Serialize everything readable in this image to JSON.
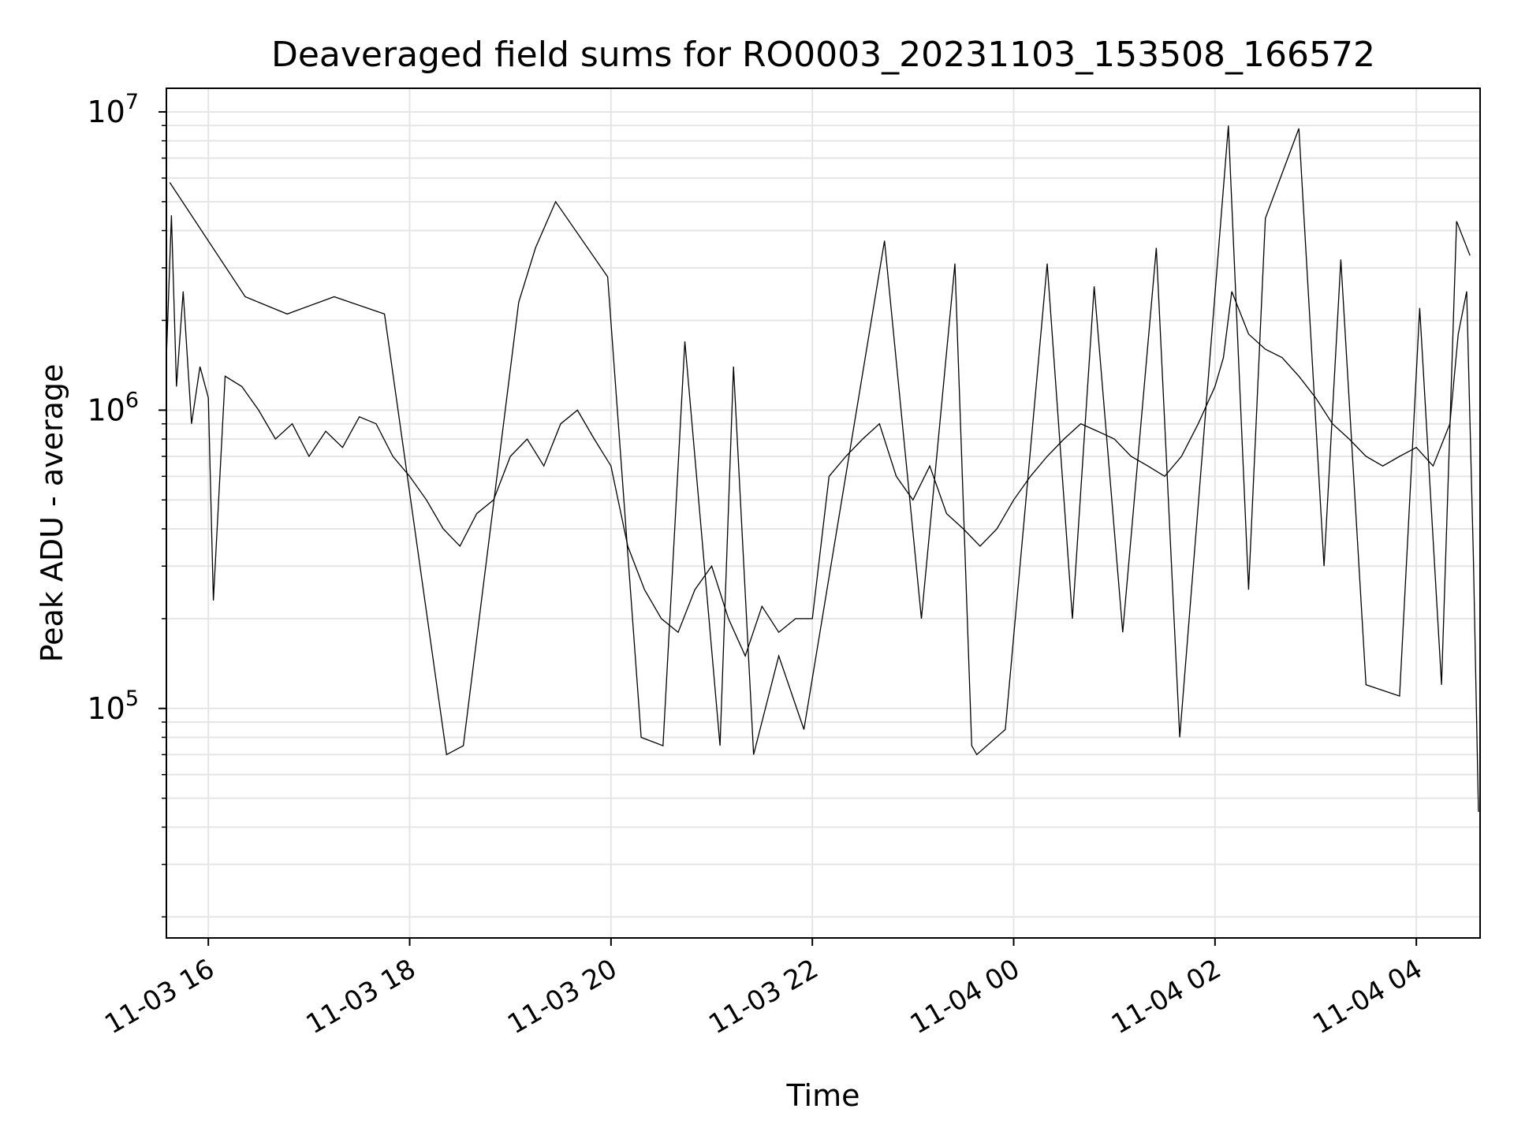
{
  "chart_data": {
    "type": "line",
    "title": "Deaveraged field sums for RO0003_20231103_153508_166572",
    "xlabel": "Time",
    "ylabel": "Peak ADU - average",
    "yscale": "log",
    "ylim": [
      17000,
      12000000
    ],
    "xlim": [
      "2023-11-03 15:35",
      "2023-11-04 04:38"
    ],
    "grid": true,
    "line_color": "#000000",
    "grid_color": "#e5e5e5",
    "x_ticks": [
      {
        "value": "2023-11-03 16:00",
        "label": "11-03 16"
      },
      {
        "value": "2023-11-03 18:00",
        "label": "11-03 18"
      },
      {
        "value": "2023-11-03 20:00",
        "label": "11-03 20"
      },
      {
        "value": "2023-11-03 22:00",
        "label": "11-03 22"
      },
      {
        "value": "2023-11-04 00:00",
        "label": "11-04 00"
      },
      {
        "value": "2023-11-04 02:00",
        "label": "11-04 02"
      },
      {
        "value": "2023-11-04 04:00",
        "label": "11-04 04"
      }
    ],
    "y_ticks": [
      {
        "value": 100000,
        "base": "10",
        "exp": "5"
      },
      {
        "value": 1000000,
        "base": "10",
        "exp": "6"
      },
      {
        "value": 10000000,
        "base": "10",
        "exp": "7"
      }
    ],
    "series": [
      {
        "x": [
          "2023-11-03 15:35",
          "2023-11-03 15:38",
          "2023-11-03 15:41",
          "2023-11-03 15:45",
          "2023-11-03 15:50",
          "2023-11-03 15:55",
          "2023-11-03 16:00",
          "2023-11-03 16:03",
          "2023-11-03 16:10",
          "2023-11-03 16:20",
          "2023-11-03 16:30",
          "2023-11-03 16:40",
          "2023-11-03 16:50",
          "2023-11-03 17:00",
          "2023-11-03 17:10",
          "2023-11-03 17:20",
          "2023-11-03 17:30",
          "2023-11-03 17:40",
          "2023-11-03 17:50",
          "2023-11-03 18:00",
          "2023-11-03 18:10",
          "2023-11-03 18:20",
          "2023-11-03 18:30",
          "2023-11-03 18:40",
          "2023-11-03 18:50",
          "2023-11-03 19:00",
          "2023-11-03 19:10",
          "2023-11-03 19:20",
          "2023-11-03 19:30",
          "2023-11-03 19:40",
          "2023-11-03 19:50",
          "2023-11-03 20:00",
          "2023-11-03 20:10",
          "2023-11-03 20:20",
          "2023-11-03 20:30",
          "2023-11-03 20:40",
          "2023-11-03 20:50",
          "2023-11-03 21:00",
          "2023-11-03 21:10",
          "2023-11-03 21:20",
          "2023-11-03 21:30",
          "2023-11-03 21:40",
          "2023-11-03 21:50",
          "2023-11-03 22:00",
          "2023-11-03 22:10",
          "2023-11-03 22:20",
          "2023-11-03 22:30",
          "2023-11-03 22:40",
          "2023-11-03 22:50",
          "2023-11-03 23:00",
          "2023-11-03 23:10",
          "2023-11-03 23:20",
          "2023-11-03 23:30",
          "2023-11-03 23:40",
          "2023-11-03 23:50",
          "2023-11-04 00:00",
          "2023-11-04 00:10",
          "2023-11-04 00:20",
          "2023-11-04 00:30",
          "2023-11-04 00:40",
          "2023-11-04 00:50",
          "2023-11-04 01:00",
          "2023-11-04 01:10",
          "2023-11-04 01:20",
          "2023-11-04 01:30",
          "2023-11-04 01:40",
          "2023-11-04 01:50",
          "2023-11-04 02:00",
          "2023-11-04 02:05",
          "2023-11-04 02:10",
          "2023-11-04 02:20",
          "2023-11-04 02:30",
          "2023-11-04 02:40",
          "2023-11-04 02:50",
          "2023-11-04 03:00",
          "2023-11-04 03:10",
          "2023-11-04 03:20",
          "2023-11-04 03:30",
          "2023-11-04 03:40",
          "2023-11-04 03:50",
          "2023-11-04 04:00",
          "2023-11-04 04:10",
          "2023-11-04 04:20",
          "2023-11-04 04:25",
          "2023-11-04 04:30",
          "2023-11-04 04:34",
          "2023-11-04 04:37"
        ],
        "y": [
          1500000,
          4500000,
          1200000,
          2500000,
          900000,
          1400000,
          1100000,
          230000,
          1300000,
          1200000,
          1000000,
          800000,
          900000,
          700000,
          850000,
          750000,
          950000,
          900000,
          700000,
          600000,
          500000,
          400000,
          350000,
          450000,
          500000,
          700000,
          800000,
          650000,
          900000,
          1000000,
          800000,
          650000,
          350000,
          250000,
          200000,
          180000,
          250000,
          300000,
          200000,
          150000,
          220000,
          180000,
          200000,
          200000,
          600000,
          700000,
          800000,
          900000,
          600000,
          500000,
          650000,
          450000,
          400000,
          350000,
          400000,
          500000,
          600000,
          700000,
          800000,
          900000,
          850000,
          800000,
          700000,
          650000,
          600000,
          700000,
          900000,
          1200000,
          1500000,
          2500000,
          1800000,
          1600000,
          1500000,
          1300000,
          1100000,
          900000,
          800000,
          700000,
          650000,
          700000,
          750000,
          650000,
          900000,
          1800000,
          2500000,
          320000,
          45000
        ]
      },
      {
        "x": [
          "2023-11-03 15:37",
          "2023-11-03 16:22",
          "2023-11-03 16:47",
          "2023-11-03 17:15",
          "2023-11-03 17:45",
          "2023-11-03 18:22",
          "2023-11-03 18:32",
          "2023-11-03 19:05",
          "2023-11-03 19:15",
          "2023-11-03 19:27",
          "2023-11-03 19:58",
          "2023-11-03 20:18",
          "2023-11-03 20:31",
          "2023-11-03 20:44",
          "2023-11-03 21:05",
          "2023-11-03 21:13",
          "2023-11-03 21:25",
          "2023-11-03 21:40",
          "2023-11-03 21:55",
          "2023-11-03 22:43",
          "2023-11-03 23:05",
          "2023-11-03 23:25",
          "2023-11-03 23:35",
          "2023-11-03 23:38",
          "2023-11-03 23:55",
          "2023-11-04 00:20",
          "2023-11-04 00:35",
          "2023-11-04 00:48",
          "2023-11-04 01:05",
          "2023-11-04 01:25",
          "2023-11-04 01:39",
          "2023-11-04 02:08",
          "2023-11-04 02:20",
          "2023-11-04 02:30",
          "2023-11-04 02:50",
          "2023-11-04 03:05",
          "2023-11-04 03:15",
          "2023-11-04 03:30",
          "2023-11-04 03:50",
          "2023-11-04 04:02",
          "2023-11-04 04:15",
          "2023-11-04 04:24",
          "2023-11-04 04:32"
        ],
        "y": [
          5800000,
          2400000,
          2100000,
          2400000,
          2100000,
          70000,
          75000,
          2300000,
          3500000,
          5000000,
          2800000,
          80000,
          75000,
          1700000,
          75000,
          1400000,
          70000,
          150000,
          85000,
          3700000,
          200000,
          3100000,
          75000,
          70000,
          85000,
          3100000,
          200000,
          2600000,
          180000,
          3500000,
          80000,
          9000000,
          250000,
          4400000,
          8800000,
          300000,
          3200000,
          120000,
          110000,
          2200000,
          120000,
          4300000,
          3300000
        ]
      }
    ]
  }
}
